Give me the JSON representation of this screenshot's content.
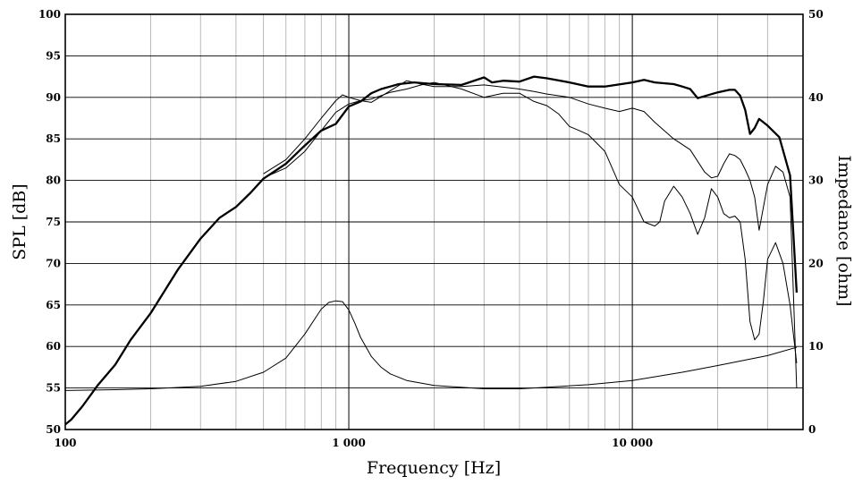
{
  "chart_data": {
    "type": "line",
    "xlabel": "Frequency [Hz]",
    "ylabel": "SPL [dB]",
    "y2label": "Impedance [ohm]",
    "xscale": "log",
    "xlim": [
      100,
      40000
    ],
    "ylim": [
      50,
      100
    ],
    "y2lim": [
      0,
      50
    ],
    "grid": true,
    "x_tick_labels": [
      {
        "value": 100,
        "label": "100"
      },
      {
        "value": 1000,
        "label": "1 000"
      },
      {
        "value": 10000,
        "label": "10 000"
      }
    ],
    "y_ticks": [
      50,
      55,
      60,
      65,
      70,
      75,
      80,
      85,
      90,
      95,
      100
    ],
    "y2_ticks": [
      0,
      10,
      20,
      30,
      40,
      50
    ],
    "series": [
      {
        "axis": "left",
        "style": "bold",
        "x": [
          100,
          105,
          115,
          130,
          150,
          170,
          200,
          250,
          300,
          350,
          400,
          450,
          500,
          600,
          700,
          800,
          900,
          1000,
          1100,
          1200,
          1300,
          1400,
          1500,
          1700,
          2000,
          2500,
          3000,
          3200,
          3500,
          4000,
          4500,
          5000,
          6000,
          7000,
          8000,
          10000,
          11000,
          12000,
          14000,
          15000,
          16000,
          17000,
          20000,
          22000,
          23000,
          24000,
          25000,
          26000,
          27000,
          28000,
          30000,
          33000,
          36000,
          38000
        ],
        "y": [
          50.6,
          51.2,
          52.8,
          55.3,
          57.8,
          60.8,
          64.0,
          69.3,
          73.0,
          75.5,
          76.8,
          78.5,
          80.2,
          82.0,
          84.2,
          86.0,
          86.8,
          88.9,
          89.5,
          90.5,
          91.0,
          91.3,
          91.6,
          91.8,
          91.6,
          91.5,
          92.4,
          91.8,
          92.0,
          91.9,
          92.5,
          92.3,
          91.8,
          91.3,
          91.3,
          91.8,
          92.1,
          91.8,
          91.6,
          91.3,
          91.0,
          89.9,
          90.6,
          90.9,
          90.9,
          90.2,
          88.5,
          85.6,
          86.3,
          87.4,
          86.6,
          85.2,
          80.6,
          66.5
        ]
      },
      {
        "axis": "left",
        "style": "thin",
        "x": [
          500,
          600,
          700,
          800,
          900,
          950,
          1000,
          1100,
          1200,
          1400,
          1600,
          1800,
          2000,
          2500,
          3000,
          4000,
          4500,
          5000,
          6000,
          7000,
          8000,
          9000,
          10000,
          11000,
          12000,
          14000,
          16000,
          18000,
          19000,
          20000,
          21000,
          22000,
          23000,
          24000,
          25000,
          26000,
          27000,
          28000,
          30000,
          32000,
          34000,
          36000,
          38000
        ],
        "y": [
          80.8,
          82.5,
          85.0,
          87.5,
          89.6,
          90.3,
          90.0,
          89.6,
          89.4,
          90.8,
          92.0,
          91.6,
          91.3,
          91.3,
          91.5,
          91.0,
          90.7,
          90.4,
          90.0,
          89.2,
          88.7,
          88.3,
          88.7,
          88.3,
          87.0,
          85.0,
          83.7,
          81.0,
          80.3,
          80.5,
          82.0,
          83.2,
          83.0,
          82.5,
          81.3,
          80.0,
          78.0,
          74.0,
          79.5,
          81.7,
          81.0,
          78.0,
          55.0
        ]
      },
      {
        "axis": "left",
        "style": "thin",
        "x": [
          500,
          600,
          700,
          800,
          900,
          1000,
          1100,
          1200,
          1400,
          1600,
          1800,
          2000,
          2500,
          3000,
          3500,
          4000,
          4500,
          5000,
          5500,
          6000,
          6500,
          7000,
          8000,
          9000,
          10000,
          11000,
          12000,
          12500,
          13000,
          14000,
          15000,
          16000,
          17000,
          18000,
          19000,
          20000,
          21000,
          22000,
          23000,
          24000,
          25000,
          26000,
          27000,
          28000,
          29000,
          30000,
          32000,
          34000,
          36000,
          38000
        ],
        "y": [
          80.3,
          81.5,
          83.5,
          86.0,
          88.2,
          89.2,
          89.6,
          89.8,
          90.6,
          91.0,
          91.5,
          91.8,
          91.0,
          90.0,
          90.5,
          90.5,
          89.5,
          89.0,
          88.0,
          86.5,
          86.0,
          85.5,
          83.5,
          79.5,
          78.0,
          75.0,
          74.5,
          75.0,
          77.5,
          79.3,
          78.0,
          76.0,
          73.5,
          75.5,
          79.0,
          78.0,
          76.0,
          75.5,
          75.7,
          75.0,
          70.5,
          63.0,
          60.8,
          61.5,
          65.5,
          70.5,
          72.5,
          70.0,
          65.0,
          58.0
        ]
      },
      {
        "axis": "right",
        "style": "thin",
        "x": [
          100,
          150,
          200,
          300,
          400,
          500,
          600,
          700,
          800,
          850,
          900,
          950,
          1000,
          1050,
          1100,
          1200,
          1300,
          1400,
          1600,
          2000,
          3000,
          4000,
          5000,
          7000,
          10000,
          15000,
          20000,
          30000,
          38000
        ],
        "y": [
          4.7,
          4.8,
          4.9,
          5.2,
          5.8,
          6.9,
          8.6,
          11.5,
          14.5,
          15.3,
          15.5,
          15.4,
          14.4,
          12.8,
          11.1,
          8.8,
          7.5,
          6.7,
          5.9,
          5.3,
          4.9,
          4.9,
          5.1,
          5.4,
          5.9,
          6.9,
          7.7,
          8.9,
          9.9
        ]
      }
    ]
  }
}
